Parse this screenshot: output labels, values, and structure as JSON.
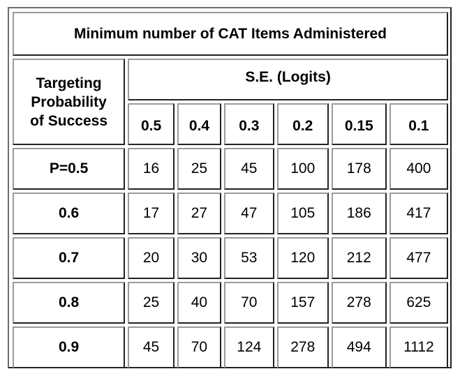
{
  "table": {
    "title": "Minimum number of CAT Items Administered",
    "corner_label_lines": [
      "Targeting",
      "Probability",
      "of Success"
    ],
    "se_header": "S.E. (Logits)",
    "se_values": [
      "0.5",
      "0.4",
      "0.3",
      "0.2",
      "0.15",
      "0.1"
    ],
    "rows": [
      {
        "label": "P=0.5",
        "values": [
          "16",
          "25",
          "45",
          "100",
          "178",
          "400"
        ]
      },
      {
        "label": "0.6",
        "values": [
          "17",
          "27",
          "47",
          "105",
          "186",
          "417"
        ]
      },
      {
        "label": "0.7",
        "values": [
          "20",
          "30",
          "53",
          "120",
          "212",
          "477"
        ]
      },
      {
        "label": "0.8",
        "values": [
          "25",
          "40",
          "70",
          "157",
          "278",
          "625"
        ]
      },
      {
        "label": "0.9",
        "values": [
          "45",
          "70",
          "124",
          "278",
          "494",
          "1112"
        ]
      }
    ]
  }
}
